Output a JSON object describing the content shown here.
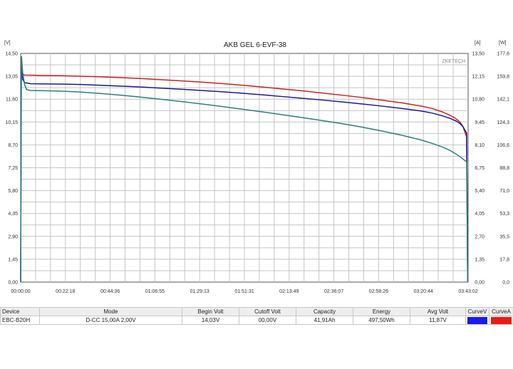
{
  "chart_data": {
    "type": "line",
    "title": "AKB GEL  6-EVF-38",
    "brand": "ZKETECH",
    "y_left_unit": "[V]",
    "y_right1_unit": "[A]",
    "y_right2_unit": "[W]",
    "y_left_ticks": [
      "0,00",
      "1,45",
      "2,90",
      "4,35",
      "5,80",
      "7,25",
      "8,70",
      "10,15",
      "11,60",
      "13,05",
      "14,50"
    ],
    "y_right1_ticks": [
      "0,00",
      "1,35",
      "2,70",
      "4,05",
      "5,40",
      "6,75",
      "8,10",
      "9,45",
      "10,80",
      "12,15",
      "13,50"
    ],
    "y_right2_ticks": [
      "0,0",
      "17,8",
      "35,5",
      "53,3",
      "71,0",
      "88,8",
      "106,6",
      "124,3",
      "142,1",
      "159,8",
      "177,6"
    ],
    "x_ticks": [
      "00:00:00",
      "00:22:18",
      "00:44:36",
      "01:06:55",
      "01:29:13",
      "01:51:31",
      "02:13:49",
      "02:36:07",
      "02:58:26",
      "03:20:44",
      "03:43:02"
    ],
    "ylim": [
      0,
      14.5
    ],
    "xlim": [
      0,
      223.03
    ],
    "grid": true,
    "series": [
      {
        "color": "#cc2222",
        "axis": "W",
        "x": [
          0,
          0.3,
          1,
          2,
          5,
          10,
          20,
          30,
          40,
          50,
          60,
          70,
          80,
          90,
          100,
          110,
          120,
          130,
          140,
          150,
          160,
          170,
          180,
          190,
          200,
          205,
          210,
          214,
          217,
          219,
          220.5,
          221.5,
          222.3,
          222.8
        ],
        "y": [
          0,
          174.5,
          161.5,
          160.8,
          160.7,
          160.5,
          160.3,
          159.9,
          159.4,
          158.8,
          158.1,
          157.2,
          156.3,
          155.3,
          154.2,
          153.0,
          151.6,
          150.1,
          148.6,
          146.9,
          145.2,
          143.4,
          141.3,
          139.2,
          136.6,
          134.9,
          132.3,
          129.6,
          126.9,
          124.3,
          120.7,
          116.2,
          112.6,
          0
        ]
      },
      {
        "color": "#1a1a99",
        "axis": "V",
        "x": [
          0,
          0.3,
          1,
          2,
          5,
          10,
          20,
          30,
          40,
          50,
          60,
          70,
          80,
          90,
          100,
          110,
          120,
          130,
          140,
          150,
          160,
          170,
          180,
          190,
          200,
          205,
          210,
          214,
          217,
          219,
          220.5,
          221.5,
          222.3,
          222.8
        ],
        "y": [
          0,
          13.5,
          12.85,
          12.65,
          12.58,
          12.57,
          12.56,
          12.53,
          12.48,
          12.43,
          12.37,
          12.3,
          12.23,
          12.15,
          12.07,
          11.98,
          11.88,
          11.77,
          11.66,
          11.55,
          11.43,
          11.3,
          11.16,
          11.01,
          10.84,
          10.72,
          10.55,
          10.38,
          10.22,
          10.05,
          9.85,
          9.62,
          9.45,
          0
        ]
      },
      {
        "color": "#2a8080",
        "axis": "V",
        "x": [
          0,
          0.4,
          1,
          2,
          3,
          5,
          10,
          20,
          30,
          40,
          50,
          60,
          70,
          80,
          90,
          100,
          110,
          120,
          130,
          140,
          150,
          160,
          170,
          180,
          190,
          200,
          205,
          210,
          214,
          217,
          219,
          220.5,
          221.5,
          222.3,
          222.8
        ],
        "y": [
          0,
          14.3,
          13.3,
          12.5,
          12.2,
          12.15,
          12.14,
          12.11,
          12.05,
          11.96,
          11.85,
          11.73,
          11.59,
          11.45,
          11.3,
          11.14,
          10.97,
          10.8,
          10.62,
          10.44,
          10.25,
          10.05,
          9.83,
          9.58,
          9.31,
          9.0,
          8.8,
          8.58,
          8.35,
          8.12,
          7.95,
          7.8,
          7.7,
          7.65,
          0
        ]
      }
    ]
  },
  "info_table": {
    "headers": [
      "Device",
      "Mode",
      "Begin Volt",
      "Cutoff Volt",
      "Capacity",
      "Energy",
      "Avg Volt",
      "CurveV",
      "CurveA"
    ],
    "row": [
      "EBC-B20H",
      "D-CC  15,00A  2,00V",
      "14,03V",
      "00,00V",
      "41,91Ah",
      "497,50Wh",
      "11,87V"
    ],
    "curve_colors": [
      "#1a1aee",
      "#ee1a1a"
    ]
  }
}
